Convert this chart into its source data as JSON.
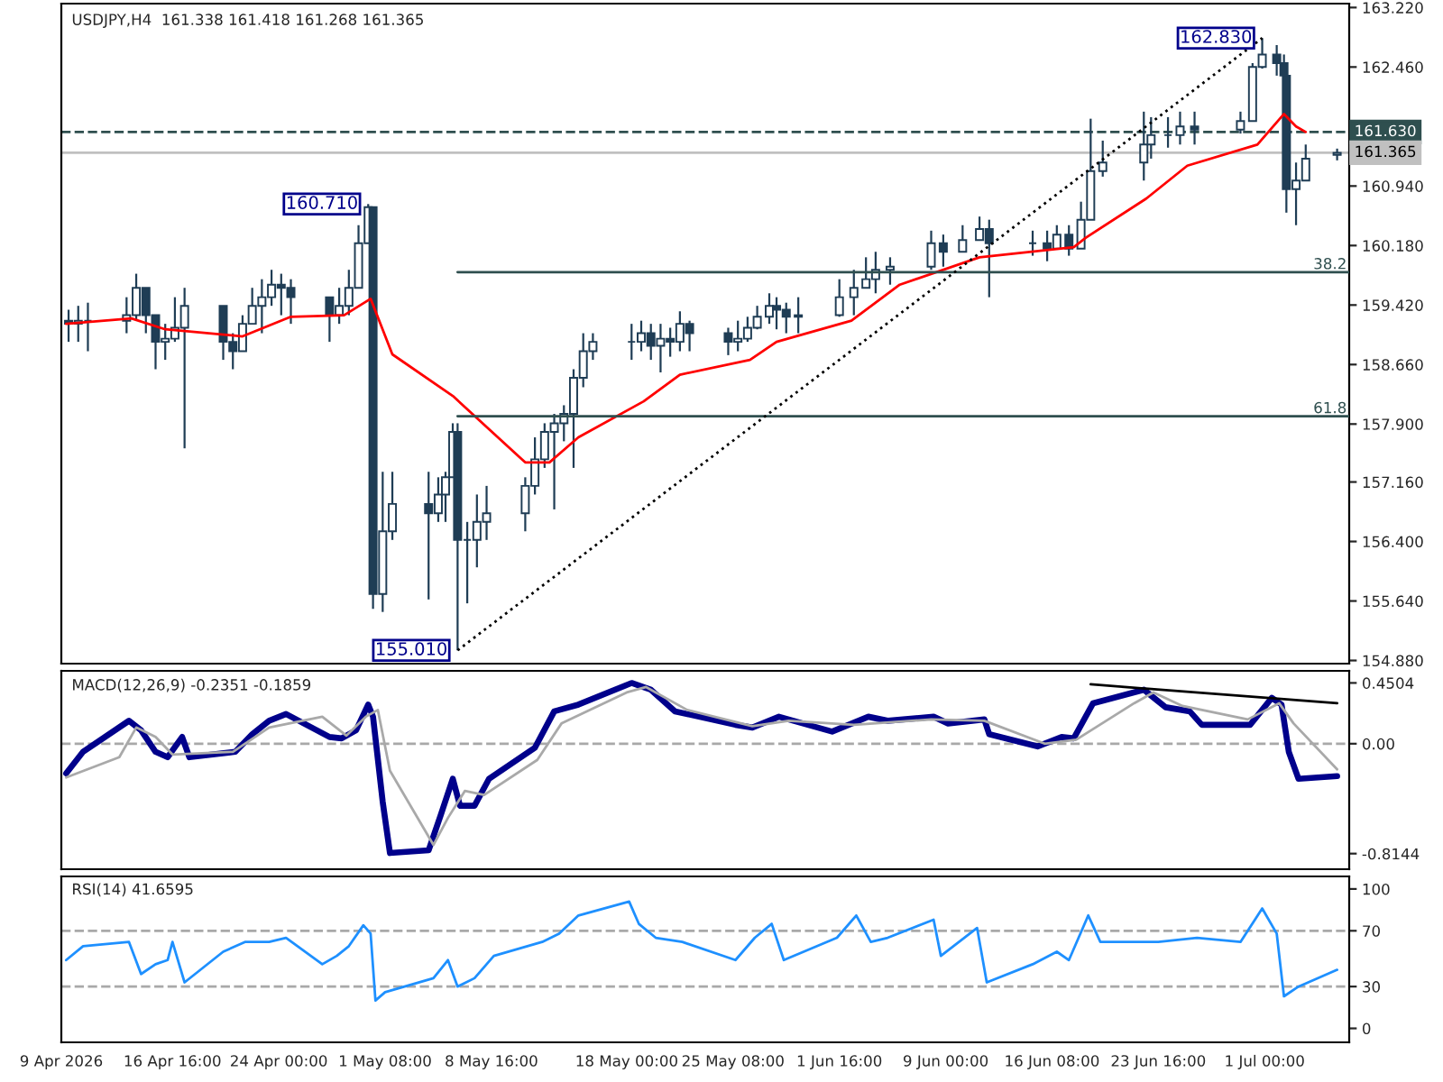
{
  "chart_data": [
    {
      "type": "candlestick",
      "title": "USDJPY,H4  161.338 161.418 161.268 161.365",
      "color": "#1f3d55",
      "tick_labels": "y",
      "x": [
        "2026-04-09T12:00",
        "2026-04-10T04:00",
        "2026-04-10T20:00",
        "2026-04-13T12:00",
        "2026-04-14T04:00",
        "2026-04-14T20:00",
        "2026-04-15T12:00",
        "2026-04-16T04:00",
        "2026-04-16T20:00",
        "2026-04-17T12:00",
        "2026-04-20T04:00",
        "2026-04-20T20:00",
        "2026-04-21T12:00",
        "2026-04-22T04:00",
        "2026-04-22T20:00",
        "2026-04-23T12:00",
        "2026-04-24T04:00",
        "2026-04-24T20:00",
        "2026-04-27T12:00",
        "2026-04-28T04:00",
        "2026-04-28T20:00",
        "2026-04-29T12:00",
        "2026-04-30T04:00",
        "2026-04-30T12:00",
        "2026-05-01T04:00",
        "2026-05-01T20:00",
        "2026-05-04T08:00",
        "2026-05-05T00:00",
        "2026-05-05T12:00",
        "2026-05-06T00:00",
        "2026-05-06T08:00",
        "2026-05-07T00:00",
        "2026-05-07T16:00",
        "2026-05-08T08:00",
        "2026-05-11T00:00",
        "2026-05-11T16:00",
        "2026-05-12T08:00",
        "2026-05-13T00:00",
        "2026-05-13T16:00",
        "2026-05-14T08:00",
        "2026-05-15T00:00",
        "2026-05-15T16:00",
        "2026-05-18T08:00",
        "2026-05-19T00:00",
        "2026-05-19T16:00",
        "2026-05-20T08:00",
        "2026-05-21T00:00",
        "2026-05-21T16:00",
        "2026-05-22T08:00",
        "2026-05-25T00:00",
        "2026-05-25T16:00",
        "2026-05-26T08:00",
        "2026-05-27T00:00",
        "2026-05-27T20:00",
        "2026-05-28T08:00",
        "2026-05-29T00:00",
        "2026-05-29T20:00",
        "2026-06-01T16:00",
        "2026-06-02T16:00",
        "2026-06-03T12:00",
        "2026-06-04T04:00",
        "2026-06-05T04:00",
        "2026-06-08T00:00",
        "2026-06-08T20:00",
        "2026-06-10T04:00",
        "2026-06-11T08:00",
        "2026-06-12T00:00",
        "2026-06-15T00:00",
        "2026-06-16T00:00",
        "2026-06-16T16:00",
        "2026-06-17T12:00",
        "2026-06-18T08:00",
        "2026-06-19T00:00",
        "2026-06-19T20:00",
        "2026-06-22T16:00",
        "2026-06-23T04:00",
        "2026-06-24T08:00",
        "2026-06-25T04:00",
        "2026-06-26T04:00",
        "2026-06-29T08:00",
        "2026-06-30T04:00",
        "2026-06-30T20:00",
        "2026-07-01T20:00",
        "2026-07-02T08:00",
        "2026-07-02T12:00",
        "2026-07-03T04:00",
        "2026-07-03T20:00",
        "2026-07-06T00:00"
      ],
      "ohlc": [
        [
          159.22,
          159.36,
          158.95,
          159.18
        ],
        [
          159.18,
          159.41,
          158.95,
          159.22
        ],
        [
          159.22,
          159.45,
          158.83,
          159.22
        ],
        [
          159.22,
          159.52,
          159.06,
          159.29
        ],
        [
          159.29,
          159.82,
          159.22,
          159.64
        ],
        [
          159.64,
          159.64,
          159.06,
          159.29
        ],
        [
          159.29,
          159.29,
          158.6,
          158.95
        ],
        [
          158.95,
          159.18,
          158.72,
          158.99
        ],
        [
          158.99,
          159.52,
          158.95,
          159.13
        ],
        [
          159.13,
          159.64,
          157.59,
          159.41
        ],
        [
          159.41,
          159.41,
          158.72,
          158.95
        ],
        [
          158.95,
          159.06,
          158.6,
          158.83
        ],
        [
          158.83,
          159.29,
          158.83,
          159.18
        ],
        [
          159.18,
          159.64,
          159.18,
          159.41
        ],
        [
          159.41,
          159.75,
          159.06,
          159.52
        ],
        [
          159.52,
          159.87,
          159.41,
          159.68
        ],
        [
          159.68,
          159.82,
          159.29,
          159.64
        ],
        [
          159.64,
          159.75,
          159.18,
          159.52
        ],
        [
          159.52,
          159.52,
          158.95,
          159.29
        ],
        [
          159.29,
          159.64,
          159.18,
          159.41
        ],
        [
          159.41,
          159.87,
          159.29,
          159.64
        ],
        [
          159.64,
          160.44,
          159.64,
          160.21
        ],
        [
          160.21,
          160.71,
          160.21,
          160.67
        ],
        [
          160.67,
          160.67,
          155.54,
          155.73
        ],
        [
          155.73,
          157.29,
          155.5,
          156.53
        ],
        [
          156.53,
          157.29,
          156.42,
          156.88
        ],
        [
          156.88,
          157.29,
          155.66,
          156.76
        ],
        [
          156.76,
          157.22,
          156.65,
          157.0
        ],
        [
          157.0,
          157.29,
          156.65,
          157.22
        ],
        [
          157.22,
          157.91,
          157.22,
          157.8
        ],
        [
          157.8,
          157.91,
          155.01,
          156.42
        ],
        [
          156.42,
          156.65,
          155.61,
          156.42
        ],
        [
          156.42,
          157.0,
          156.07,
          156.65
        ],
        [
          156.65,
          157.11,
          156.42,
          156.76
        ],
        [
          156.76,
          157.22,
          156.53,
          157.11
        ],
        [
          157.11,
          157.73,
          157.0,
          157.45
        ],
        [
          157.45,
          157.91,
          157.34,
          157.8
        ],
        [
          157.8,
          158.03,
          156.81,
          157.91
        ],
        [
          157.91,
          158.14,
          157.68,
          158.03
        ],
        [
          158.03,
          158.6,
          157.34,
          158.49
        ],
        [
          158.49,
          159.06,
          158.37,
          158.83
        ],
        [
          158.83,
          159.06,
          158.72,
          158.95
        ],
        [
          158.95,
          159.18,
          158.72,
          158.95
        ],
        [
          158.95,
          159.22,
          158.83,
          159.06
        ],
        [
          159.06,
          159.18,
          158.72,
          158.9
        ],
        [
          158.9,
          159.18,
          158.56,
          158.99
        ],
        [
          158.99,
          159.13,
          158.76,
          158.95
        ],
        [
          158.95,
          159.34,
          158.83,
          159.18
        ],
        [
          159.18,
          159.22,
          158.83,
          159.06
        ],
        [
          159.06,
          159.13,
          158.78,
          158.95
        ],
        [
          158.95,
          159.22,
          158.83,
          158.99
        ],
        [
          158.99,
          159.27,
          158.95,
          159.13
        ],
        [
          159.13,
          159.41,
          159.11,
          159.27
        ],
        [
          159.27,
          159.57,
          159.18,
          159.41
        ],
        [
          159.41,
          159.52,
          159.11,
          159.36
        ],
        [
          159.36,
          159.45,
          159.06,
          159.27
        ],
        [
          159.27,
          159.52,
          159.06,
          159.29
        ],
        [
          159.29,
          159.75,
          159.27,
          159.52
        ],
        [
          159.52,
          159.87,
          159.29,
          159.64
        ],
        [
          159.64,
          160.03,
          159.64,
          159.75
        ],
        [
          159.75,
          160.1,
          159.57,
          159.87
        ],
        [
          159.87,
          160.03,
          159.68,
          159.91
        ],
        [
          159.91,
          160.37,
          159.87,
          160.21
        ],
        [
          160.21,
          160.32,
          159.91,
          160.1
        ],
        [
          160.1,
          160.44,
          160.1,
          160.25
        ],
        [
          160.25,
          160.55,
          160.25,
          160.39
        ],
        [
          160.39,
          160.51,
          159.52,
          160.21
        ],
        [
          160.21,
          160.37,
          160.05,
          160.21
        ],
        [
          160.21,
          160.37,
          159.98,
          160.14
        ],
        [
          160.14,
          160.44,
          160.14,
          160.32
        ],
        [
          160.32,
          160.44,
          160.05,
          160.14
        ],
        [
          160.14,
          160.74,
          160.14,
          160.51
        ],
        [
          160.51,
          161.8,
          160.51,
          161.13
        ],
        [
          161.13,
          161.52,
          161.06,
          161.24
        ],
        [
          161.24,
          161.89,
          161.01,
          161.47
        ],
        [
          161.47,
          161.82,
          161.29,
          161.59
        ],
        [
          161.59,
          161.82,
          161.43,
          161.59
        ],
        [
          161.59,
          161.89,
          161.47,
          161.7
        ],
        [
          161.7,
          161.89,
          161.47,
          161.66
        ],
        [
          161.66,
          161.89,
          161.61,
          161.77
        ],
        [
          161.77,
          162.51,
          161.77,
          162.46
        ],
        [
          162.46,
          162.83,
          162.44,
          162.62
        ],
        [
          162.62,
          162.74,
          162.35,
          162.51
        ],
        [
          162.51,
          162.62,
          162.28,
          162.35
        ],
        [
          162.35,
          162.35,
          160.6,
          160.9
        ],
        [
          160.9,
          161.24,
          160.44,
          161.01
        ],
        [
          161.01,
          161.47,
          161.01,
          161.29
        ],
        [
          161.338,
          161.418,
          161.268,
          161.365
        ]
      ],
      "series": [
        {
          "type": "line",
          "color": "#ff0000",
          "x": [
            "2026-04-09T08:00",
            "2026-04-13T20:00",
            "2026-04-16T04:00",
            "2026-04-21T12:00",
            "2026-04-24T20:00",
            "2026-04-28T12:00",
            "2026-04-30T08:00",
            "2026-05-01T20:00",
            "2026-05-06T00:00",
            "2026-05-11T00:00",
            "2026-05-12T16:00",
            "2026-05-14T16:00",
            "2026-05-19T04:00",
            "2026-05-21T16:00",
            "2026-05-26T12:00",
            "2026-05-28T08:00",
            "2026-06-02T12:00",
            "2026-06-05T20:00",
            "2026-06-11T08:00",
            "2026-06-17T20:00",
            "2026-06-18T16:00",
            "2026-06-22T20:00",
            "2026-06-25T16:00",
            "2026-06-30T12:00",
            "2026-07-02T08:00",
            "2026-07-03T04:00",
            "2026-07-03T20:00"
          ],
          "values": [
            159.18,
            159.25,
            159.11,
            159.02,
            159.27,
            159.29,
            159.5,
            158.79,
            158.26,
            157.41,
            157.41,
            157.73,
            158.19,
            158.53,
            158.72,
            158.95,
            159.22,
            159.68,
            160.03,
            160.16,
            160.28,
            160.78,
            161.2,
            161.47,
            161.86,
            161.7,
            161.63
          ]
        },
        {
          "type": "line",
          "color": "#2f4f4f",
          "x": [
            "2026-05-06T08:00",
            "2026-07-06T20:00"
          ],
          "values": [
            159.84,
            159.84
          ]
        },
        {
          "type": "line",
          "color": "#2f4f4f",
          "x": [
            "2026-05-06T08:00",
            "2026-07-06T20:00"
          ],
          "values": [
            158.0,
            158.0
          ]
        },
        {
          "type": "line",
          "color": "#000000",
          "line_style": "dotted",
          "x": [
            "2026-05-06T08:00",
            "2026-06-30T20:00"
          ],
          "values": [
            155.01,
            162.83
          ]
        }
      ],
      "annotations": [
        {
          "text": "160.710",
          "x": "2026-04-30T04:00",
          "y": 160.71
        },
        {
          "text": "155.010",
          "x": "2026-05-06T08:00",
          "y": 155.01
        },
        {
          "text": "162.830",
          "x": "2026-06-30T20:00",
          "y": 162.83
        },
        {
          "text": "38.2",
          "x": "2026-07-06T16:00",
          "y": 159.84
        },
        {
          "text": "61.8",
          "x": "2026-07-06T16:00",
          "y": 158.0
        }
      ],
      "ref_lines": [
        {
          "axis": "y",
          "value": 161.63,
          "label": "161.630",
          "color": "#2f4f4f",
          "line_style": "dashed"
        },
        {
          "axis": "y",
          "value": 161.365,
          "label": "161.365",
          "color": "#c0c0c0",
          "line_style": "solid"
        }
      ],
      "xlim": [
        "2026-04-09T00:00",
        "2026-07-06T20:00"
      ],
      "ylim": [
        154.84,
        163.27
      ],
      "yticks": [
        {
          "value": 163.22,
          "label": "163.220"
        },
        {
          "value": 162.46,
          "label": "162.460"
        },
        {
          "value": 160.94,
          "label": "160.940"
        },
        {
          "value": 160.18,
          "label": "160.180"
        },
        {
          "value": 159.42,
          "label": "159.420"
        },
        {
          "value": 158.66,
          "label": "158.660"
        },
        {
          "value": 157.9,
          "label": "157.900"
        },
        {
          "value": 157.16,
          "label": "157.160"
        },
        {
          "value": 156.4,
          "label": "156.400"
        },
        {
          "value": 155.64,
          "label": "155.640"
        },
        {
          "value": 154.88,
          "label": "154.880"
        }
      ]
    },
    {
      "type": "line",
      "title": "MACD(12,26,9) -0.2351 -0.1859",
      "tick_labels": "y",
      "series": [
        {
          "color": "#00008b",
          "x": [
            "2026-04-09T08:00",
            "2026-04-10T12:00",
            "2026-04-13T16:00",
            "2026-04-14T12:00",
            "2026-04-15T12:00",
            "2026-04-16T08:00",
            "2026-04-17T08:00",
            "2026-04-17T20:00",
            "2026-04-21T00:00",
            "2026-04-22T04:00",
            "2026-04-23T08:00",
            "2026-04-24T12:00",
            "2026-04-27T12:00",
            "2026-04-28T08:00",
            "2026-04-29T08:00",
            "2026-04-30T04:00",
            "2026-04-30T12:00",
            "2026-05-01T04:00",
            "2026-05-01T16:00",
            "2026-05-04T08:00",
            "2026-05-05T04:00",
            "2026-05-06T00:00",
            "2026-05-06T12:00",
            "2026-05-07T12:00",
            "2026-05-08T12:00",
            "2026-05-11T16:00",
            "2026-05-13T00:00",
            "2026-05-14T16:00",
            "2026-05-18T08:00",
            "2026-05-19T16:00",
            "2026-05-21T08:00",
            "2026-05-25T12:00",
            "2026-05-26T16:00",
            "2026-05-28T12:00",
            "2026-06-01T04:00",
            "2026-06-03T16:00",
            "2026-06-05T00:00",
            "2026-06-08T04:00",
            "2026-06-09T04:00",
            "2026-06-11T16:00",
            "2026-06-12T00:00",
            "2026-06-15T08:00",
            "2026-06-17T00:00",
            "2026-06-17T20:00",
            "2026-06-19T04:00",
            "2026-06-22T16:00",
            "2026-06-24T04:00",
            "2026-06-25T20:00",
            "2026-06-26T16:00",
            "2026-06-30T00:00",
            "2026-07-01T12:00",
            "2026-07-02T04:00",
            "2026-07-02T16:00",
            "2026-07-03T08:00",
            "2026-07-06T00:00"
          ],
          "values": [
            -0.22,
            -0.06,
            0.17,
            0.1,
            -0.06,
            -0.1,
            0.05,
            -0.1,
            -0.06,
            0.07,
            0.17,
            0.22,
            0.05,
            0.04,
            0.1,
            0.29,
            0.2,
            -0.43,
            -0.81,
            -0.79,
            -0.53,
            -0.26,
            -0.46,
            -0.46,
            -0.26,
            -0.03,
            0.24,
            0.29,
            0.45,
            0.4,
            0.24,
            0.14,
            0.12,
            0.2,
            0.09,
            0.2,
            0.17,
            0.2,
            0.15,
            0.18,
            0.07,
            -0.02,
            0.05,
            0.04,
            0.3,
            0.4,
            0.27,
            0.24,
            0.14,
            0.14,
            0.34,
            0.29,
            -0.06,
            -0.26,
            -0.24
          ]
        },
        {
          "color": "#a9a9a9",
          "x": [
            "2026-04-09T08:00",
            "2026-04-13T00:00",
            "2026-04-14T04:00",
            "2026-04-15T12:00",
            "2026-04-16T16:00",
            "2026-04-20T20:00",
            "2026-04-23T08:00",
            "2026-04-27T00:00",
            "2026-04-28T16:00",
            "2026-04-30T00:00",
            "2026-04-30T20:00",
            "2026-05-01T16:00",
            "2026-05-04T16:00",
            "2026-05-05T16:00",
            "2026-05-06T20:00",
            "2026-05-08T04:00",
            "2026-05-11T20:00",
            "2026-05-13T12:00",
            "2026-05-18T00:00",
            "2026-05-19T08:00",
            "2026-05-22T04:00",
            "2026-05-26T16:00",
            "2026-05-29T04:00",
            "2026-06-02T16:00",
            "2026-06-08T00:00",
            "2026-06-11T16:00",
            "2026-06-15T20:00",
            "2026-06-18T00:00",
            "2026-06-22T00:00",
            "2026-06-23T08:00",
            "2026-06-25T08:00",
            "2026-06-29T20:00",
            "2026-07-02T00:00",
            "2026-07-03T00:00",
            "2026-07-06T00:00"
          ],
          "values": [
            -0.25,
            -0.1,
            0.12,
            0.05,
            -0.08,
            -0.06,
            0.12,
            0.2,
            0.06,
            0.2,
            0.25,
            -0.2,
            -0.75,
            -0.55,
            -0.35,
            -0.38,
            -0.12,
            0.15,
            0.38,
            0.42,
            0.25,
            0.13,
            0.17,
            0.14,
            0.18,
            0.17,
            0.0,
            0.03,
            0.3,
            0.38,
            0.28,
            0.18,
            0.3,
            0.15,
            -0.19
          ]
        },
        {
          "color": "#000000",
          "x": [
            "2026-06-19T00:00",
            "2026-07-06T00:00"
          ],
          "values": [
            0.44,
            0.3
          ]
        }
      ],
      "ref_lines": [
        {
          "axis": "y",
          "value": 0,
          "color": "#a9a9a9",
          "line_style": "dashed"
        }
      ],
      "xlim": [
        "2026-04-09T00:00",
        "2026-07-06T20:00"
      ],
      "ylim": [
        -0.93,
        0.54
      ],
      "yticks": [
        0.4504,
        {
          "value": 0,
          "label": "0.00"
        },
        -0.8144
      ]
    },
    {
      "type": "line",
      "title": "RSI(14) 41.6595",
      "series": [
        {
          "color": "#1e90ff",
          "x": [
            "2026-04-09T08:00",
            "2026-04-10T12:00",
            "2026-04-13T16:00",
            "2026-04-14T12:00",
            "2026-04-15T12:00",
            "2026-04-16T08:00",
            "2026-04-16T16:00",
            "2026-04-17T12:00",
            "2026-04-20T04:00",
            "2026-04-21T16:00",
            "2026-04-23T08:00",
            "2026-04-24T12:00",
            "2026-04-27T00:00",
            "2026-04-28T00:00",
            "2026-04-28T20:00",
            "2026-04-29T20:00",
            "2026-04-30T08:00",
            "2026-04-30T16:00",
            "2026-05-01T08:00",
            "2026-05-04T16:00",
            "2026-05-05T16:00",
            "2026-05-06T08:00",
            "2026-05-07T12:00",
            "2026-05-08T20:00",
            "2026-05-12T04:00",
            "2026-05-13T08:00",
            "2026-05-14T16:00",
            "2026-05-18T04:00",
            "2026-05-18T20:00",
            "2026-05-20T00:00",
            "2026-05-21T20:00",
            "2026-05-25T12:00",
            "2026-05-26T20:00",
            "2026-05-28T00:00",
            "2026-05-28T20:00",
            "2026-06-01T12:00",
            "2026-06-02T20:00",
            "2026-06-03T20:00",
            "2026-06-05T00:00",
            "2026-06-08T04:00",
            "2026-06-08T16:00",
            "2026-06-11T04:00",
            "2026-06-11T20:00",
            "2026-06-15T00:00",
            "2026-06-16T16:00",
            "2026-06-17T12:00",
            "2026-06-18T20:00",
            "2026-06-19T16:00",
            "2026-06-23T16:00",
            "2026-06-26T08:00",
            "2026-06-29T08:00",
            "2026-06-30T20:00",
            "2026-07-01T20:00",
            "2026-07-02T08:00",
            "2026-07-03T08:00",
            "2026-07-06T00:00"
          ],
          "values": [
            49,
            59,
            62,
            39,
            46,
            49,
            62,
            33,
            55,
            62,
            62,
            65,
            46,
            52,
            59,
            74,
            68,
            20,
            26,
            36,
            49,
            30,
            36,
            52,
            62,
            68,
            81,
            91,
            75,
            65,
            62,
            49,
            65,
            75,
            49,
            65,
            81,
            62,
            65,
            78,
            52,
            72,
            33,
            46,
            55,
            49,
            81,
            62,
            62,
            65,
            62,
            86,
            68,
            23,
            30,
            42
          ]
        }
      ],
      "ref_lines": [
        {
          "axis": "y",
          "value": 70,
          "color": "#a9a9a9",
          "line_style": "dashed"
        },
        {
          "axis": "y",
          "value": 30,
          "color": "#a9a9a9",
          "line_style": "dashed"
        }
      ],
      "xlim": [
        "2026-04-09T00:00",
        "2026-07-06T20:00"
      ],
      "xticks": [
        {
          "value": "2026-04-09T00:00",
          "label": "9 Apr 2026"
        },
        {
          "value": "2026-04-16T16:00",
          "label": "16 Apr 16:00"
        },
        {
          "value": "2026-04-24T00:00",
          "label": "24 Apr 00:00"
        },
        {
          "value": "2026-05-01T08:00",
          "label": "1 May 08:00"
        },
        {
          "value": "2026-05-08T16:00",
          "label": "8 May 16:00"
        },
        {
          "value": "2026-05-18T00:00",
          "label": "18 May 00:00"
        },
        {
          "value": "2026-05-25T08:00",
          "label": "25 May 08:00"
        },
        {
          "value": "2026-06-01T16:00",
          "label": "1 Jun 16:00"
        },
        {
          "value": "2026-06-09T00:00",
          "label": "9 Jun 00:00"
        },
        {
          "value": "2026-06-16T08:00",
          "label": "16 Jun 08:00"
        },
        {
          "value": "2026-06-23T16:00",
          "label": "23 Jun 16:00"
        },
        {
          "value": "2026-07-01T00:00",
          "label": "1 Jul 00:00"
        }
      ],
      "ylim": [
        -10,
        109
      ],
      "yticks": [
        100,
        70,
        30,
        0
      ]
    }
  ]
}
